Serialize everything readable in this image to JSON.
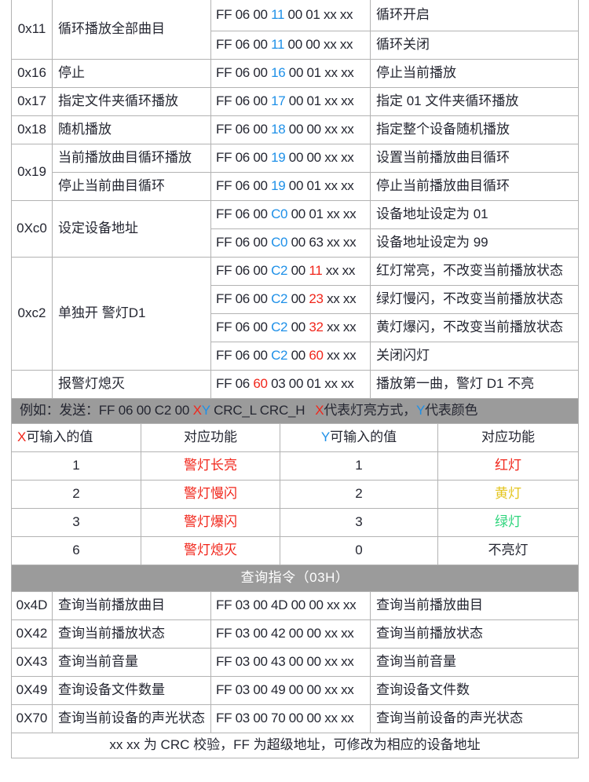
{
  "colors": {
    "red": "#f1261b",
    "blue": "#1e90e8",
    "yellow": "#e4c51e",
    "green": "#2fd57d",
    "gray_bg": "#9b9b9b",
    "header_text": "#ffffff",
    "body_text": "#242631",
    "border": "#b3b3b3"
  },
  "command_table": {
    "rows": [
      {
        "code": "0x11",
        "code_span": 2,
        "func": "循环播放全部曲目",
        "func_span": 2,
        "cmd": [
          [
            "FF 06 00 ",
            "d"
          ],
          [
            "11",
            "b"
          ],
          [
            " 00 01 xx xx",
            "d"
          ]
        ],
        "desc": "循环开启"
      },
      {
        "cmd": [
          [
            "FF 06 00 ",
            "d"
          ],
          [
            "11",
            "b"
          ],
          [
            " 00 00 xx xx",
            "d"
          ]
        ],
        "desc": "循环关闭"
      },
      {
        "code": "0x16",
        "func": "停止",
        "cmd": [
          [
            "FF 06 00 ",
            "d"
          ],
          [
            "16",
            "b"
          ],
          [
            " 00 01 xx xx",
            "d"
          ]
        ],
        "desc": "停止当前播放"
      },
      {
        "code": "0x17",
        "func": "指定文件夹循环播放",
        "cmd": [
          [
            "FF 06 00 ",
            "d"
          ],
          [
            "17",
            "b"
          ],
          [
            " 00 01 xx xx",
            "d"
          ]
        ],
        "desc": "指定 01 文件夹循环播放"
      },
      {
        "code": "0x18",
        "func": "随机播放",
        "cmd": [
          [
            "FF 06 00 ",
            "d"
          ],
          [
            "18",
            "b"
          ],
          [
            " 00 00 xx xx",
            "d"
          ]
        ],
        "desc": "指定整个设备随机播放"
      },
      {
        "code": "0x19",
        "code_span": 2,
        "func": "当前播放曲目循环播放",
        "cmd": [
          [
            "FF 06 00 ",
            "d"
          ],
          [
            "19",
            "b"
          ],
          [
            " 00 00 xx xx",
            "d"
          ]
        ],
        "desc": "设置当前播放曲目循环"
      },
      {
        "func": "停止当前曲目循环",
        "cmd": [
          [
            "FF 06 00 ",
            "d"
          ],
          [
            "19",
            "b"
          ],
          [
            " 00 01 xx xx",
            "d"
          ]
        ],
        "desc": "停止当前播放曲目循环"
      },
      {
        "code": "0Xc0",
        "code_span": 2,
        "func": "设定设备地址",
        "func_span": 2,
        "cmd": [
          [
            "FF 06 00 ",
            "d"
          ],
          [
            "C0",
            "b"
          ],
          [
            " 00 01 xx xx",
            "d"
          ]
        ],
        "desc": "设备地址设定为 01"
      },
      {
        "cmd": [
          [
            "FF 06 00 ",
            "d"
          ],
          [
            "C0",
            "b"
          ],
          [
            " 00 63 xx xx",
            "d"
          ]
        ],
        "desc": "设备地址设定为 99"
      },
      {
        "code": "0xc2",
        "code_span": 4,
        "func": "单独开 警灯D1",
        "func_span": 4,
        "cmd": [
          [
            "FF 06 00 ",
            "d"
          ],
          [
            "C2",
            "b"
          ],
          [
            " 00 ",
            "d"
          ],
          [
            "11",
            "r"
          ],
          [
            " xx xx",
            "d"
          ]
        ],
        "desc": "红灯常亮，不改变当前播放状态"
      },
      {
        "cmd": [
          [
            "FF 06 00 ",
            "d"
          ],
          [
            "C2",
            "b"
          ],
          [
            " 00 ",
            "d"
          ],
          [
            "23",
            "r"
          ],
          [
            " xx xx",
            "d"
          ]
        ],
        "desc": "绿灯慢闪，不改变当前播放状态"
      },
      {
        "cmd": [
          [
            "FF 06 00 ",
            "d"
          ],
          [
            "C2",
            "b"
          ],
          [
            " 00 ",
            "d"
          ],
          [
            "32",
            "r"
          ],
          [
            " xx xx",
            "d"
          ]
        ],
        "desc": "黄灯爆闪，不改变当前播放状态"
      },
      {
        "cmd": [
          [
            "FF 06 00 ",
            "d"
          ],
          [
            "C2",
            "b"
          ],
          [
            " 00 ",
            "d"
          ],
          [
            "60",
            "r"
          ],
          [
            " xx xx",
            "d"
          ]
        ],
        "desc": "关闭闪灯"
      },
      {
        "code": "",
        "func": "报警灯熄灭",
        "cmd": [
          [
            "FF 06 ",
            "d"
          ],
          [
            "60",
            "r"
          ],
          [
            " 03 00 01 xx xx",
            "d"
          ]
        ],
        "desc": "播放第一曲，警灯 D1 不亮"
      }
    ]
  },
  "example_note": {
    "segments": [
      [
        "例如：发送：FF 06 00 C2 00 ",
        "d"
      ],
      [
        "X",
        "r"
      ],
      [
        "Y",
        "b"
      ],
      [
        " CRC_L CRC_H  ",
        "d"
      ],
      [
        "X",
        "r"
      ],
      [
        "代表灯亮方式，",
        "d"
      ],
      [
        "Y",
        "b"
      ],
      [
        "代表颜色",
        "d"
      ]
    ]
  },
  "xy_table": {
    "headers": [
      [
        [
          "X",
          "r"
        ],
        [
          "可输入的值",
          "d"
        ]
      ],
      [
        [
          "对应功能",
          "d"
        ]
      ],
      [
        [
          "Y",
          "b"
        ],
        [
          "可输入的值",
          "d"
        ]
      ],
      [
        [
          "对应功能",
          "d"
        ]
      ]
    ],
    "rows": [
      [
        [
          [
            "1",
            "d"
          ]
        ],
        [
          [
            "警灯长亮",
            "r"
          ]
        ],
        [
          [
            "1",
            "d"
          ]
        ],
        [
          [
            "红灯",
            "r"
          ]
        ]
      ],
      [
        [
          [
            "2",
            "d"
          ]
        ],
        [
          [
            "警灯慢闪",
            "r"
          ]
        ],
        [
          [
            "2",
            "d"
          ]
        ],
        [
          [
            "黄灯",
            "y"
          ]
        ]
      ],
      [
        [
          [
            "3",
            "d"
          ]
        ],
        [
          [
            "警灯爆闪",
            "r"
          ]
        ],
        [
          [
            "3",
            "d"
          ]
        ],
        [
          [
            "绿灯",
            "g"
          ]
        ]
      ],
      [
        [
          [
            "6",
            "d"
          ]
        ],
        [
          [
            "警灯熄灭",
            "r"
          ]
        ],
        [
          [
            "0",
            "d"
          ]
        ],
        [
          [
            "不亮灯",
            "d"
          ]
        ]
      ]
    ]
  },
  "query_section": {
    "title": "查询指令（03H）",
    "rows": [
      {
        "code": "0x4D",
        "func": "查询当前播放曲目",
        "cmd": "FF 03 00 4D 00 00 xx xx",
        "desc": "查询当前播放曲目"
      },
      {
        "code": "0X42",
        "func": "查询当前播放状态",
        "cmd": "FF 03 00 42 00 00 xx xx",
        "desc": "查询当前播放状态"
      },
      {
        "code": "0X43",
        "func": "查询当前音量",
        "cmd": "FF 03 00 43 00 00 xx xx",
        "desc": "查询当前音量"
      },
      {
        "code": "0X49",
        "func": "查询设备文件数量",
        "cmd": "FF 03 00 49 00 00 xx xx",
        "desc": "查询设备文件数"
      },
      {
        "code": "0X70",
        "func": "查询当前设备的声光状态",
        "cmd": "FF 03 00 70 00 00 xx xx",
        "desc": "查询当前设备的声光状态"
      }
    ],
    "footer": "xx xx 为 CRC 校验，FF 为超级地址，可修改为相应的设备地址"
  }
}
